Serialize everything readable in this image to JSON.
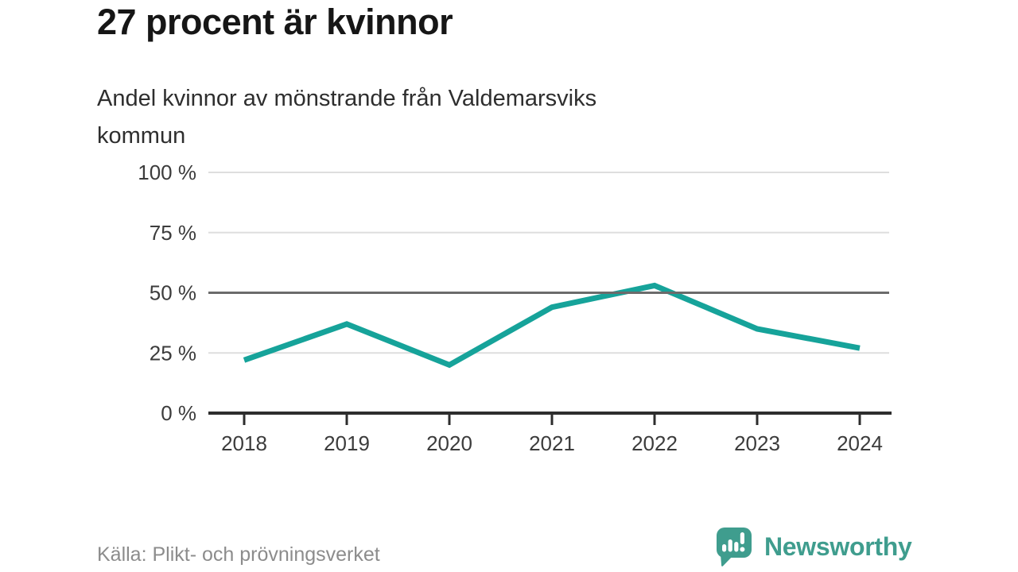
{
  "page": {
    "title": "27 procent är kvinnor",
    "subtitle_line1": "Andel kvinnor av mönstrande från Valdemarsviks",
    "subtitle_line2": "kommun"
  },
  "footer": {
    "source": "Källa: Plikt- och prövningsverket",
    "brand_name": "Newsworthy",
    "brand_icon": "newsworthy-chart-bubble-icon"
  },
  "colors": {
    "line": "#16a39a",
    "grid_light": "#dedede",
    "grid_emphasis": "#6b6b6b",
    "axis": "#2d2d2d",
    "axis_text": "#3c3c3c",
    "muted_text": "#8c8c8c",
    "brand": "#3f9d8e"
  },
  "chart_data": {
    "type": "line",
    "title": "27 procent är kvinnor",
    "subtitle": "Andel kvinnor av mönstrande från Valdemarsviks kommun",
    "categories": [
      "2018",
      "2019",
      "2020",
      "2021",
      "2022",
      "2023",
      "2024"
    ],
    "values": [
      22,
      37,
      20,
      44,
      53,
      35,
      27
    ],
    "unit": "%",
    "xlabel": "",
    "ylabel": "",
    "ylim": [
      0,
      100
    ],
    "yticks": [
      0,
      25,
      50,
      75,
      100
    ],
    "ytick_suffix": " %",
    "emphasized_ytick": 50,
    "grid": true,
    "legend": "none",
    "source": "Källa: Plikt- och prövningsverket"
  }
}
